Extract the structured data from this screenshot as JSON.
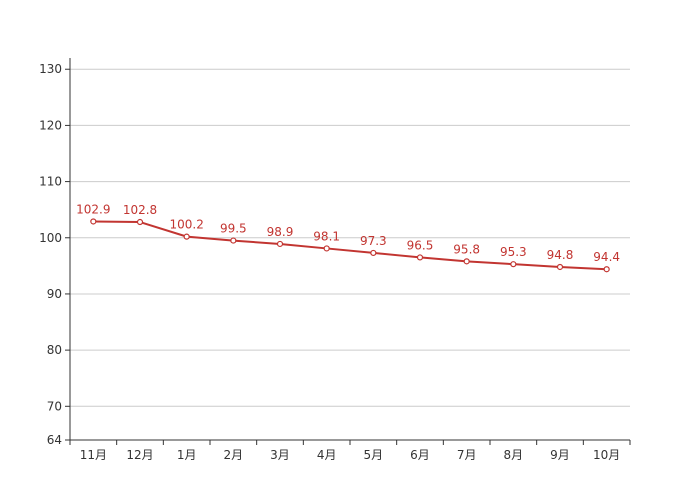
{
  "chart_data": {
    "type": "line",
    "categories": [
      "11月",
      "12月",
      "1月",
      "2月",
      "3月",
      "4月",
      "5月",
      "6月",
      "7月",
      "8月",
      "9月",
      "10月"
    ],
    "series": [
      {
        "values": [
          102.9,
          102.8,
          100.2,
          99.5,
          98.9,
          98.1,
          97.3,
          96.5,
          95.8,
          95.3,
          94.8,
          94.4
        ],
        "color": "#c23531"
      }
    ],
    "title": "",
    "xlabel": "",
    "ylabel": "",
    "ylim": [
      64,
      132
    ],
    "yticks": [
      64,
      70,
      80,
      90,
      100,
      110,
      120,
      130
    ],
    "grid": true,
    "data_labels": true,
    "legend": "none",
    "colors": {
      "grid": "#cccccc",
      "axis": "#333333",
      "text": "#333333"
    }
  }
}
